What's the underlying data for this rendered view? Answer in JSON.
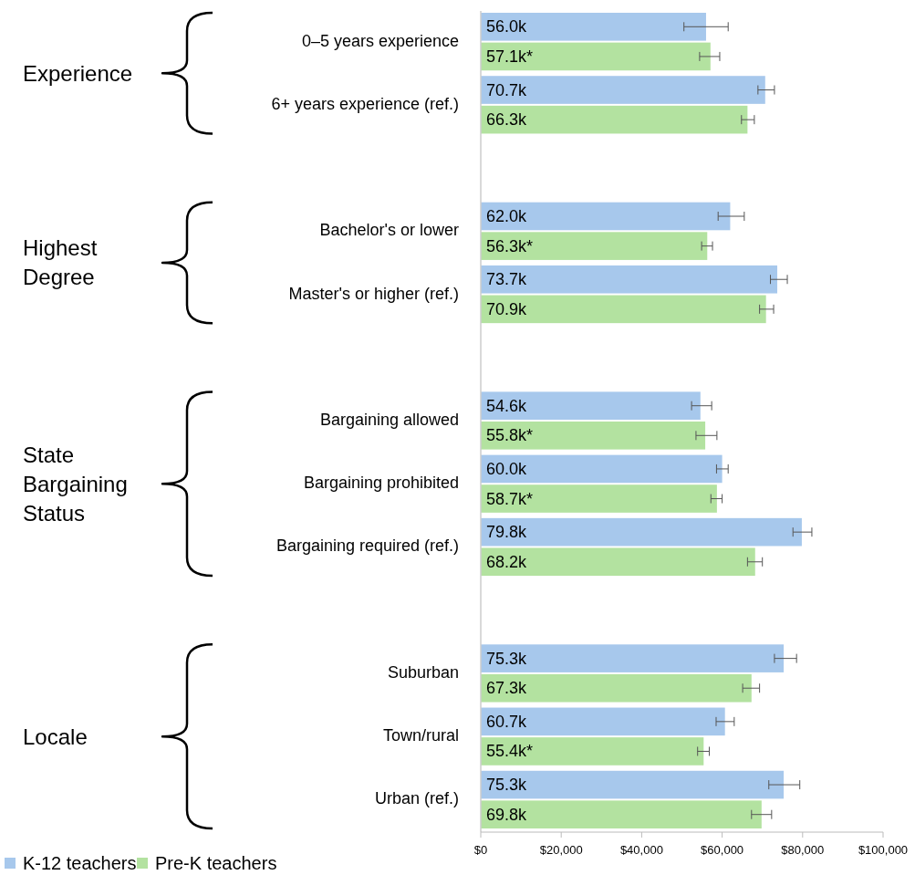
{
  "chart_data": {
    "type": "bar",
    "orientation": "horizontal",
    "categories": [
      "0–5 years experience",
      "6+ years experience (ref.)",
      null,
      "Bachelor's or lower",
      "Master's or higher (ref.)",
      null,
      "Bargaining allowed",
      "Bargaining prohibited",
      "Bargaining required (ref.)",
      null,
      "Suburban",
      "Town/rural",
      "Urban (ref.)"
    ],
    "series": [
      {
        "name": "K-12 teachers",
        "color": "#a7c8ec",
        "values": [
          56000,
          70700,
          null,
          62000,
          73700,
          null,
          54600,
          60000,
          79800,
          null,
          75300,
          60700,
          75300
        ],
        "value_labels": [
          "56.0k",
          "70.7k",
          null,
          "62.0k",
          "73.7k",
          null,
          "54.6k",
          "60.0k",
          "79.8k",
          null,
          "75.3k",
          "60.7k",
          "75.3k"
        ],
        "errors": [
          [
            50500,
            61500
          ],
          [
            68900,
            73000
          ],
          null,
          [
            59000,
            65500
          ],
          [
            72000,
            76200
          ],
          null,
          [
            52400,
            57400
          ],
          [
            58600,
            61500
          ],
          [
            77600,
            82300
          ],
          null,
          [
            73000,
            78500
          ],
          [
            58500,
            63000
          ],
          [
            71600,
            79300
          ]
        ]
      },
      {
        "name": "Pre-K teachers",
        "color": "#b3e2a0",
        "values": [
          57100,
          66300,
          null,
          56300,
          70900,
          null,
          55800,
          58700,
          68200,
          null,
          67300,
          55400,
          69800
        ],
        "value_labels": [
          "57.1k*",
          "66.3k",
          null,
          "56.3k*",
          "70.9k",
          null,
          "55.8k*",
          "58.7k*",
          "68.2k",
          null,
          "67.3k",
          "55.4k*",
          "69.8k"
        ],
        "errors": [
          [
            54400,
            59400
          ],
          [
            64800,
            68000
          ],
          null,
          [
            54900,
            57600
          ],
          [
            69300,
            72800
          ],
          null,
          [
            53500,
            58700
          ],
          [
            57200,
            60000
          ],
          [
            66300,
            70000
          ],
          null,
          [
            65100,
            69300
          ],
          [
            53900,
            56800
          ],
          [
            67300,
            72300
          ]
        ]
      }
    ],
    "annotations": [
      "Experience",
      "Highest Degree",
      "State Bargaining Status",
      "Locale"
    ],
    "xlim": [
      0,
      100000
    ],
    "xticks": [
      {
        "value": 0,
        "label": "$0"
      },
      {
        "value": 20000,
        "label": "$20,000"
      },
      {
        "value": 40000,
        "label": "$40,000"
      },
      {
        "value": 60000,
        "label": "$60,000"
      },
      {
        "value": 80000,
        "label": "$80,000"
      },
      {
        "value": 100000,
        "label": "$100,000"
      }
    ],
    "grid": false,
    "legend": "bottom left"
  }
}
